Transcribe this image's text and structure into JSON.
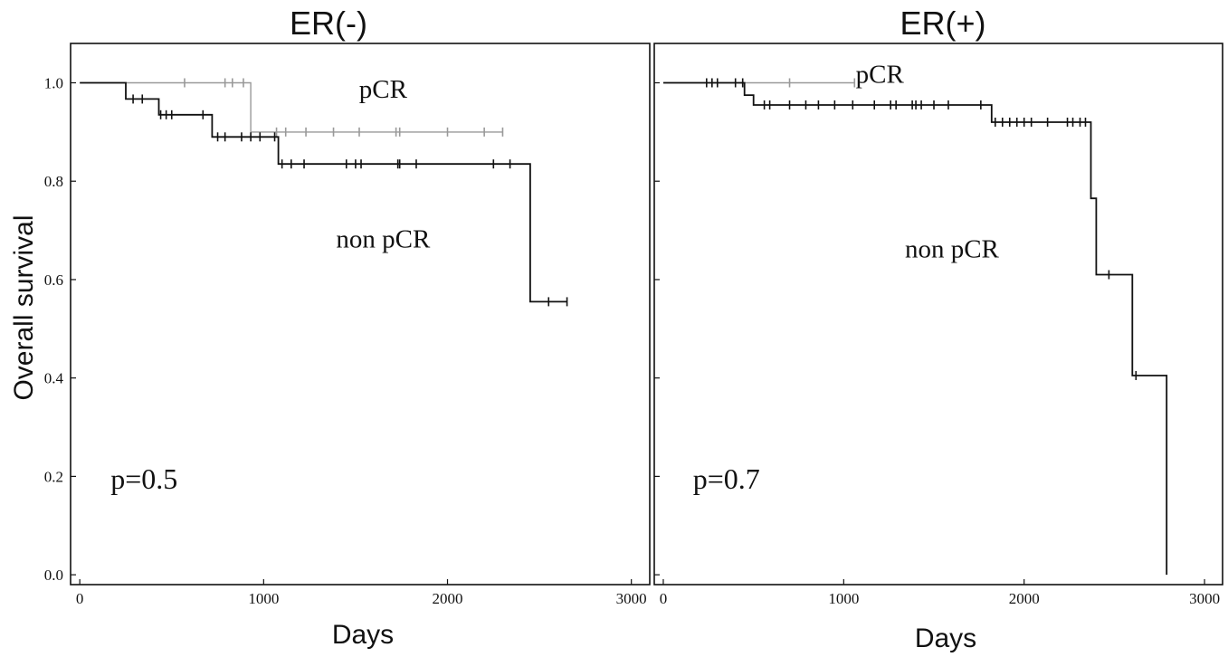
{
  "ylabel": "Overall survival",
  "chart_data": [
    {
      "type": "line",
      "title": "ER(-)",
      "xlabel": "Days",
      "ylabel": "Overall survival",
      "xlim": [
        -50,
        3100
      ],
      "ylim": [
        -0.02,
        1.08
      ],
      "xticks": [
        0,
        1000,
        2000,
        3000
      ],
      "yticks": [
        0.0,
        0.2,
        0.4,
        0.6,
        0.8,
        1.0
      ],
      "ytick_labels": [
        "0.0",
        "0.2",
        "0.4",
        "0.6",
        "0.8",
        "1.0"
      ],
      "grid": false,
      "annotations": [
        {
          "text": "pCR",
          "x": 1650,
          "y": 0.97
        },
        {
          "text": "non pCR",
          "x": 1650,
          "y": 0.665
        },
        {
          "text": "p=0.5",
          "x": 350,
          "y": 0.175
        }
      ],
      "series": [
        {
          "name": "pCR",
          "color": "#999999",
          "steps": [
            [
              0,
              1.0
            ],
            [
              930,
              1.0
            ],
            [
              930,
              0.9
            ],
            [
              2300,
              0.9
            ]
          ],
          "censored": [
            [
              570,
              1.0
            ],
            [
              790,
              1.0
            ],
            [
              830,
              1.0
            ],
            [
              890,
              1.0
            ],
            [
              1070,
              0.9
            ],
            [
              1120,
              0.9
            ],
            [
              1230,
              0.9
            ],
            [
              1380,
              0.9
            ],
            [
              1520,
              0.9
            ],
            [
              1720,
              0.9
            ],
            [
              1740,
              0.9
            ],
            [
              2000,
              0.9
            ],
            [
              2200,
              0.9
            ],
            [
              2300,
              0.9
            ]
          ]
        },
        {
          "name": "non pCR",
          "color": "#111111",
          "steps": [
            [
              0,
              1.0
            ],
            [
              250,
              1.0
            ],
            [
              250,
              0.967
            ],
            [
              430,
              0.967
            ],
            [
              430,
              0.935
            ],
            [
              720,
              0.935
            ],
            [
              720,
              0.89
            ],
            [
              1080,
              0.89
            ],
            [
              1080,
              0.835
            ],
            [
              2450,
              0.835
            ],
            [
              2450,
              0.555
            ],
            [
              2650,
              0.555
            ]
          ],
          "censored": [
            [
              290,
              0.967
            ],
            [
              340,
              0.967
            ],
            [
              440,
              0.935
            ],
            [
              470,
              0.935
            ],
            [
              500,
              0.935
            ],
            [
              670,
              0.935
            ],
            [
              750,
              0.89
            ],
            [
              790,
              0.89
            ],
            [
              880,
              0.89
            ],
            [
              930,
              0.89
            ],
            [
              980,
              0.89
            ],
            [
              1060,
              0.89
            ],
            [
              1100,
              0.835
            ],
            [
              1150,
              0.835
            ],
            [
              1220,
              0.835
            ],
            [
              1450,
              0.835
            ],
            [
              1500,
              0.835
            ],
            [
              1530,
              0.835
            ],
            [
              1730,
              0.835
            ],
            [
              1740,
              0.835
            ],
            [
              1830,
              0.835
            ],
            [
              2250,
              0.835
            ],
            [
              2340,
              0.835
            ],
            [
              2550,
              0.555
            ],
            [
              2650,
              0.555
            ]
          ]
        }
      ]
    },
    {
      "type": "line",
      "title": "ER(+)",
      "xlabel": "Days",
      "ylabel": "",
      "xlim": [
        -50,
        3100
      ],
      "ylim": [
        -0.02,
        1.08
      ],
      "xticks": [
        0,
        1000,
        2000,
        3000
      ],
      "yticks": [
        0.0,
        0.2,
        0.4,
        0.6,
        0.8,
        1.0
      ],
      "ytick_labels": [],
      "grid": false,
      "annotations": [
        {
          "text": "pCR",
          "x": 1200,
          "y": 1.0
        },
        {
          "text": "non pCR",
          "x": 1600,
          "y": 0.645
        },
        {
          "text": "p=0.7",
          "x": 350,
          "y": 0.175
        }
      ],
      "series": [
        {
          "name": "pCR",
          "color": "#999999",
          "steps": [
            [
              0,
              1.0
            ],
            [
              1060,
              1.0
            ]
          ],
          "censored": [
            [
              270,
              1.0
            ],
            [
              700,
              1.0
            ],
            [
              1060,
              1.0
            ]
          ]
        },
        {
          "name": "non pCR",
          "color": "#111111",
          "steps": [
            [
              0,
              1.0
            ],
            [
              450,
              1.0
            ],
            [
              450,
              0.975
            ],
            [
              500,
              0.975
            ],
            [
              500,
              0.955
            ],
            [
              1820,
              0.955
            ],
            [
              1820,
              0.92
            ],
            [
              2370,
              0.92
            ],
            [
              2370,
              0.765
            ],
            [
              2400,
              0.765
            ],
            [
              2400,
              0.61
            ],
            [
              2600,
              0.61
            ],
            [
              2600,
              0.405
            ],
            [
              2790,
              0.405
            ],
            [
              2790,
              0.0
            ]
          ],
          "censored": [
            [
              240,
              1.0
            ],
            [
              270,
              1.0
            ],
            [
              300,
              1.0
            ],
            [
              400,
              1.0
            ],
            [
              440,
              1.0
            ],
            [
              560,
              0.955
            ],
            [
              590,
              0.955
            ],
            [
              700,
              0.955
            ],
            [
              790,
              0.955
            ],
            [
              860,
              0.955
            ],
            [
              950,
              0.955
            ],
            [
              1050,
              0.955
            ],
            [
              1170,
              0.955
            ],
            [
              1260,
              0.955
            ],
            [
              1290,
              0.955
            ],
            [
              1380,
              0.955
            ],
            [
              1400,
              0.955
            ],
            [
              1430,
              0.955
            ],
            [
              1500,
              0.955
            ],
            [
              1580,
              0.955
            ],
            [
              1760,
              0.955
            ],
            [
              1840,
              0.92
            ],
            [
              1880,
              0.92
            ],
            [
              1920,
              0.92
            ],
            [
              1960,
              0.92
            ],
            [
              2000,
              0.92
            ],
            [
              2040,
              0.92
            ],
            [
              2130,
              0.92
            ],
            [
              2240,
              0.92
            ],
            [
              2270,
              0.92
            ],
            [
              2310,
              0.92
            ],
            [
              2340,
              0.92
            ],
            [
              2470,
              0.61
            ],
            [
              2620,
              0.405
            ]
          ]
        }
      ]
    }
  ]
}
